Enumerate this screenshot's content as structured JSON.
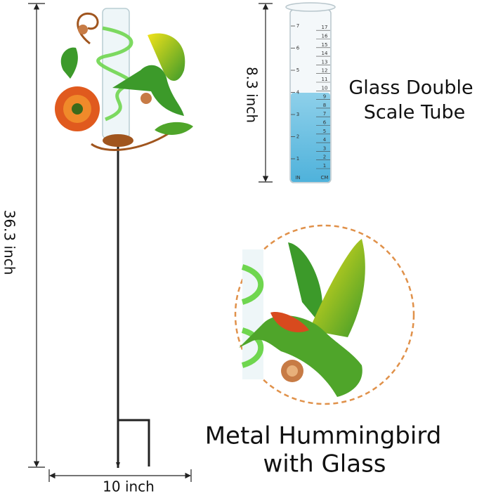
{
  "dimensions": {
    "height": "36.3 inch",
    "width": "10 inch",
    "tube_height": "8.3 inch"
  },
  "tube": {
    "title_lines": [
      "Glass Double",
      "Scale Tube"
    ],
    "inch_labels": [
      1,
      2,
      3,
      4,
      5,
      6,
      7
    ],
    "cm_labels": [
      1,
      2,
      3,
      4,
      5,
      6,
      7,
      8,
      9,
      10,
      11,
      12,
      13,
      14,
      15,
      16,
      17
    ],
    "unit_labels": [
      "IN",
      "CM"
    ]
  },
  "detail": {
    "title_lines": [
      "Metal Hummingbird",
      "with Glass"
    ]
  }
}
